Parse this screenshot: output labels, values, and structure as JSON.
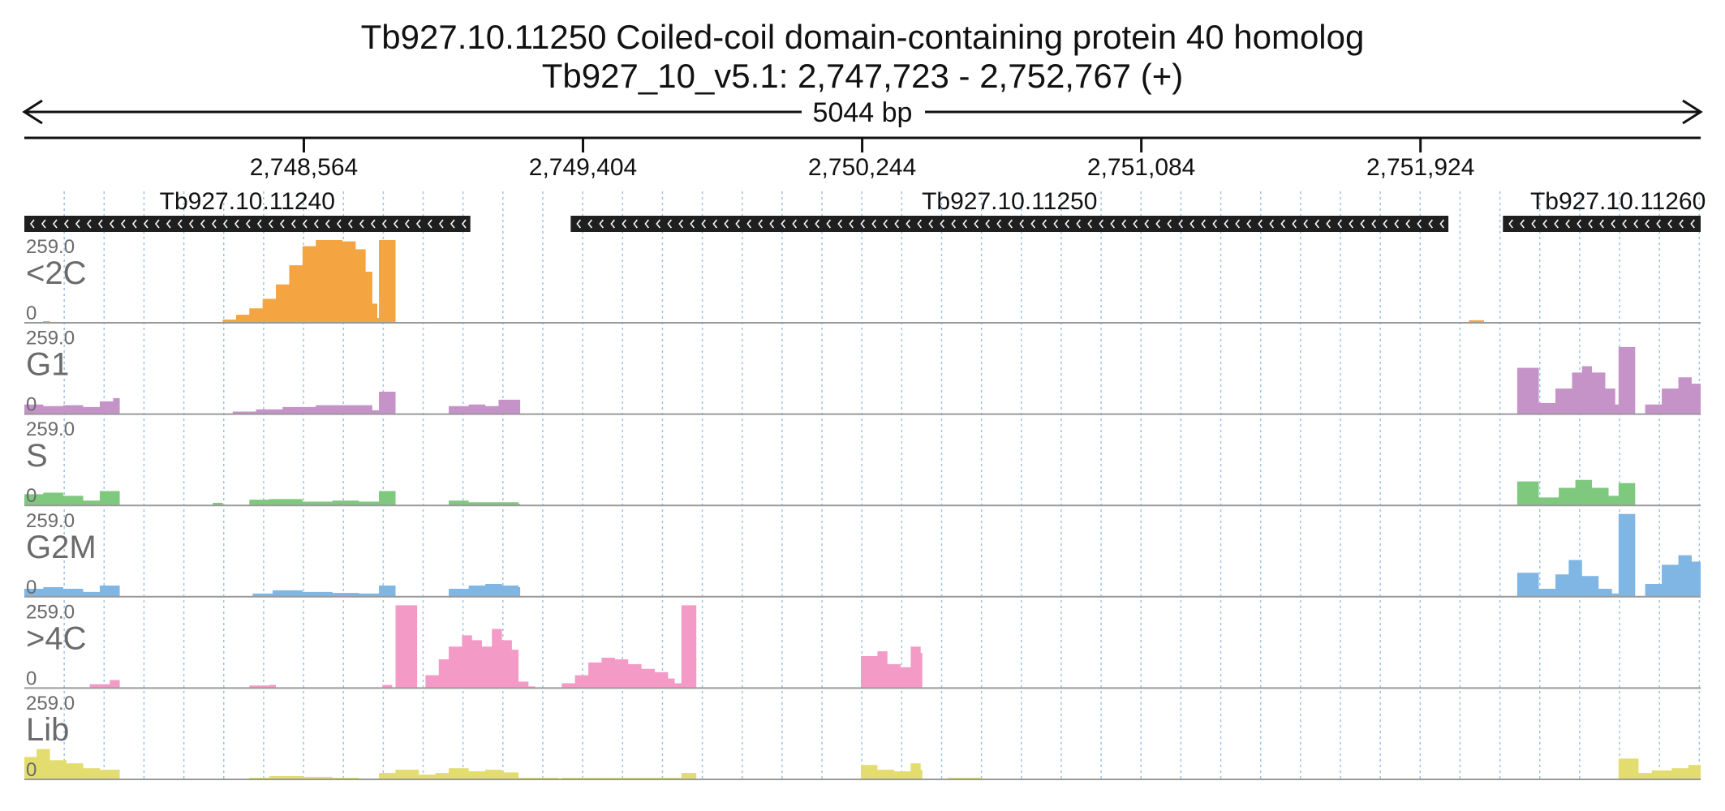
{
  "chart_data": {
    "type": "area",
    "title": "Tb927.10.11250  Coiled-coil domain-containing protein 40 homolog",
    "subtitle": "Tb927_10_v5.1: 2,747,723 - 2,752,767 (+)",
    "span_label": "5044 bp",
    "x_range": [
      2747723,
      2752767
    ],
    "ticks": [
      {
        "value": 2748564,
        "label": "2,748,564"
      },
      {
        "value": 2749404,
        "label": "2,749,404"
      },
      {
        "value": 2750244,
        "label": "2,750,244"
      },
      {
        "value": 2751084,
        "label": "2,751,084"
      },
      {
        "value": 2751924,
        "label": "2,751,924"
      }
    ],
    "genes": [
      {
        "name": "Tb927.10.11240",
        "start": 2747723,
        "end": 2749065,
        "strand": "-"
      },
      {
        "name": "Tb927.10.11250",
        "start": 2749367,
        "end": 2752008,
        "strand": "-"
      },
      {
        "name": "Tb927.10.11260",
        "start": 2752172,
        "end": 2752767,
        "strand": "-"
      }
    ],
    "ylim": [
      0,
      259.0
    ],
    "series": [
      {
        "name": "<2C",
        "max_label": "259.0",
        "min_label": "0",
        "color": "#f5a442",
        "bins": [
          {
            "x": 2747723,
            "y": 0
          },
          {
            "x": 2747780,
            "y": 5
          },
          {
            "x": 2747800,
            "y": 0
          },
          {
            "x": 2748300,
            "y": 0
          },
          {
            "x": 2748320,
            "y": 10
          },
          {
            "x": 2748360,
            "y": 25
          },
          {
            "x": 2748400,
            "y": 45
          },
          {
            "x": 2748440,
            "y": 75
          },
          {
            "x": 2748480,
            "y": 120
          },
          {
            "x": 2748520,
            "y": 180
          },
          {
            "x": 2748560,
            "y": 240
          },
          {
            "x": 2748600,
            "y": 259
          },
          {
            "x": 2748640,
            "y": 259
          },
          {
            "x": 2748680,
            "y": 255
          },
          {
            "x": 2748720,
            "y": 230
          },
          {
            "x": 2748750,
            "y": 160
          },
          {
            "x": 2748770,
            "y": 60
          },
          {
            "x": 2748785,
            "y": 15
          },
          {
            "x": 2748790,
            "y": 259
          },
          {
            "x": 2748835,
            "y": 259
          },
          {
            "x": 2748840,
            "y": 0
          },
          {
            "x": 2752050,
            "y": 0
          },
          {
            "x": 2752070,
            "y": 8
          },
          {
            "x": 2752110,
            "y": 8
          },
          {
            "x": 2752115,
            "y": 0
          },
          {
            "x": 2752767,
            "y": 0
          }
        ]
      },
      {
        "name": "G1",
        "max_label": "259.0",
        "min_label": "0",
        "color": "#c593c7",
        "bins": [
          {
            "x": 2747723,
            "y": 30
          },
          {
            "x": 2747780,
            "y": 25
          },
          {
            "x": 2747840,
            "y": 28
          },
          {
            "x": 2747900,
            "y": 22
          },
          {
            "x": 2747950,
            "y": 40
          },
          {
            "x": 2747990,
            "y": 50
          },
          {
            "x": 2748010,
            "y": 0
          },
          {
            "x": 2748330,
            "y": 0
          },
          {
            "x": 2748350,
            "y": 8
          },
          {
            "x": 2748420,
            "y": 15
          },
          {
            "x": 2748500,
            "y": 22
          },
          {
            "x": 2748600,
            "y": 28
          },
          {
            "x": 2748700,
            "y": 28
          },
          {
            "x": 2748770,
            "y": 12
          },
          {
            "x": 2748790,
            "y": 70
          },
          {
            "x": 2748835,
            "y": 70
          },
          {
            "x": 2748840,
            "y": 0
          },
          {
            "x": 2748990,
            "y": 0
          },
          {
            "x": 2749000,
            "y": 25
          },
          {
            "x": 2749060,
            "y": 30
          },
          {
            "x": 2749110,
            "y": 25
          },
          {
            "x": 2749150,
            "y": 45
          },
          {
            "x": 2749210,
            "y": 45
          },
          {
            "x": 2749215,
            "y": 0
          },
          {
            "x": 2752210,
            "y": 0
          },
          {
            "x": 2752215,
            "y": 145
          },
          {
            "x": 2752270,
            "y": 145
          },
          {
            "x": 2752280,
            "y": 35
          },
          {
            "x": 2752330,
            "y": 80
          },
          {
            "x": 2752380,
            "y": 130
          },
          {
            "x": 2752410,
            "y": 150
          },
          {
            "x": 2752440,
            "y": 130
          },
          {
            "x": 2752480,
            "y": 80
          },
          {
            "x": 2752510,
            "y": 30
          },
          {
            "x": 2752520,
            "y": 210
          },
          {
            "x": 2752565,
            "y": 210
          },
          {
            "x": 2752570,
            "y": 0
          },
          {
            "x": 2752600,
            "y": 30
          },
          {
            "x": 2752650,
            "y": 80
          },
          {
            "x": 2752700,
            "y": 115
          },
          {
            "x": 2752740,
            "y": 95
          },
          {
            "x": 2752767,
            "y": 40
          }
        ]
      },
      {
        "name": "S",
        "max_label": "259.0",
        "min_label": "0",
        "color": "#7fc97f",
        "bins": [
          {
            "x": 2747723,
            "y": 35
          },
          {
            "x": 2747780,
            "y": 40
          },
          {
            "x": 2747840,
            "y": 30
          },
          {
            "x": 2747900,
            "y": 15
          },
          {
            "x": 2747950,
            "y": 45
          },
          {
            "x": 2747990,
            "y": 45
          },
          {
            "x": 2748010,
            "y": 0
          },
          {
            "x": 2748280,
            "y": 0
          },
          {
            "x": 2748290,
            "y": 8
          },
          {
            "x": 2748320,
            "y": 0
          },
          {
            "x": 2748390,
            "y": 0
          },
          {
            "x": 2748400,
            "y": 18
          },
          {
            "x": 2748460,
            "y": 20
          },
          {
            "x": 2748560,
            "y": 12
          },
          {
            "x": 2748650,
            "y": 15
          },
          {
            "x": 2748730,
            "y": 12
          },
          {
            "x": 2748790,
            "y": 45
          },
          {
            "x": 2748835,
            "y": 45
          },
          {
            "x": 2748840,
            "y": 0
          },
          {
            "x": 2748990,
            "y": 0
          },
          {
            "x": 2749000,
            "y": 15
          },
          {
            "x": 2749060,
            "y": 10
          },
          {
            "x": 2749210,
            "y": 5
          },
          {
            "x": 2749215,
            "y": 0
          },
          {
            "x": 2752210,
            "y": 0
          },
          {
            "x": 2752215,
            "y": 75
          },
          {
            "x": 2752270,
            "y": 75
          },
          {
            "x": 2752280,
            "y": 25
          },
          {
            "x": 2752340,
            "y": 55
          },
          {
            "x": 2752390,
            "y": 80
          },
          {
            "x": 2752440,
            "y": 55
          },
          {
            "x": 2752490,
            "y": 30
          },
          {
            "x": 2752520,
            "y": 70
          },
          {
            "x": 2752565,
            "y": 70
          },
          {
            "x": 2752570,
            "y": 0
          },
          {
            "x": 2752767,
            "y": 0
          }
        ]
      },
      {
        "name": "G2M",
        "max_label": "259.0",
        "min_label": "0",
        "color": "#7fb6e3",
        "bins": [
          {
            "x": 2747723,
            "y": 25
          },
          {
            "x": 2747780,
            "y": 30
          },
          {
            "x": 2747840,
            "y": 25
          },
          {
            "x": 2747900,
            "y": 15
          },
          {
            "x": 2747950,
            "y": 35
          },
          {
            "x": 2747990,
            "y": 35
          },
          {
            "x": 2748010,
            "y": 0
          },
          {
            "x": 2748400,
            "y": 0
          },
          {
            "x": 2748410,
            "y": 10
          },
          {
            "x": 2748470,
            "y": 20
          },
          {
            "x": 2748560,
            "y": 15
          },
          {
            "x": 2748650,
            "y": 12
          },
          {
            "x": 2748730,
            "y": 10
          },
          {
            "x": 2748790,
            "y": 35
          },
          {
            "x": 2748835,
            "y": 35
          },
          {
            "x": 2748840,
            "y": 0
          },
          {
            "x": 2748990,
            "y": 0
          },
          {
            "x": 2749000,
            "y": 25
          },
          {
            "x": 2749060,
            "y": 35
          },
          {
            "x": 2749110,
            "y": 40
          },
          {
            "x": 2749160,
            "y": 35
          },
          {
            "x": 2749210,
            "y": 30
          },
          {
            "x": 2749215,
            "y": 0
          },
          {
            "x": 2752210,
            "y": 0
          },
          {
            "x": 2752215,
            "y": 75
          },
          {
            "x": 2752270,
            "y": 75
          },
          {
            "x": 2752280,
            "y": 25
          },
          {
            "x": 2752330,
            "y": 70
          },
          {
            "x": 2752370,
            "y": 115
          },
          {
            "x": 2752410,
            "y": 65
          },
          {
            "x": 2752460,
            "y": 25
          },
          {
            "x": 2752500,
            "y": 10
          },
          {
            "x": 2752520,
            "y": 259
          },
          {
            "x": 2752565,
            "y": 259
          },
          {
            "x": 2752570,
            "y": 0
          },
          {
            "x": 2752600,
            "y": 40
          },
          {
            "x": 2752650,
            "y": 100
          },
          {
            "x": 2752700,
            "y": 130
          },
          {
            "x": 2752740,
            "y": 110
          },
          {
            "x": 2752767,
            "y": 40
          }
        ]
      },
      {
        "name": ">4C",
        "max_label": "259.0",
        "min_label": "0",
        "color": "#f39ac7",
        "bins": [
          {
            "x": 2747723,
            "y": 0
          },
          {
            "x": 2747900,
            "y": 0
          },
          {
            "x": 2747920,
            "y": 12
          },
          {
            "x": 2747980,
            "y": 25
          },
          {
            "x": 2748010,
            "y": 0
          },
          {
            "x": 2748390,
            "y": 0
          },
          {
            "x": 2748400,
            "y": 8
          },
          {
            "x": 2748460,
            "y": 10
          },
          {
            "x": 2748480,
            "y": 0
          },
          {
            "x": 2748790,
            "y": 0
          },
          {
            "x": 2748800,
            "y": 10
          },
          {
            "x": 2748830,
            "y": 0
          },
          {
            "x": 2748840,
            "y": 259
          },
          {
            "x": 2748900,
            "y": 259
          },
          {
            "x": 2748905,
            "y": 0
          },
          {
            "x": 2748930,
            "y": 40
          },
          {
            "x": 2748970,
            "y": 90
          },
          {
            "x": 2749000,
            "y": 130
          },
          {
            "x": 2749040,
            "y": 165
          },
          {
            "x": 2749070,
            "y": 150
          },
          {
            "x": 2749100,
            "y": 130
          },
          {
            "x": 2749130,
            "y": 185
          },
          {
            "x": 2749160,
            "y": 150
          },
          {
            "x": 2749190,
            "y": 120
          },
          {
            "x": 2749210,
            "y": 20
          },
          {
            "x": 2749240,
            "y": 5
          },
          {
            "x": 2749260,
            "y": 0
          },
          {
            "x": 2749330,
            "y": 0
          },
          {
            "x": 2749340,
            "y": 15
          },
          {
            "x": 2749380,
            "y": 40
          },
          {
            "x": 2749420,
            "y": 80
          },
          {
            "x": 2749460,
            "y": 95
          },
          {
            "x": 2749500,
            "y": 90
          },
          {
            "x": 2749540,
            "y": 75
          },
          {
            "x": 2749580,
            "y": 60
          },
          {
            "x": 2749620,
            "y": 50
          },
          {
            "x": 2749660,
            "y": 30
          },
          {
            "x": 2749680,
            "y": 15
          },
          {
            "x": 2749700,
            "y": 259
          },
          {
            "x": 2749740,
            "y": 259
          },
          {
            "x": 2749745,
            "y": 0
          },
          {
            "x": 2750230,
            "y": 0
          },
          {
            "x": 2750240,
            "y": 100
          },
          {
            "x": 2750290,
            "y": 115
          },
          {
            "x": 2750320,
            "y": 75
          },
          {
            "x": 2750360,
            "y": 65
          },
          {
            "x": 2750390,
            "y": 130
          },
          {
            "x": 2750420,
            "y": 110
          },
          {
            "x": 2750425,
            "y": 0
          },
          {
            "x": 2752767,
            "y": 0
          }
        ]
      },
      {
        "name": "Lib",
        "max_label": "259.0",
        "min_label": "0",
        "color": "#e3dc6e",
        "bins": [
          {
            "x": 2747723,
            "y": 70
          },
          {
            "x": 2747760,
            "y": 95
          },
          {
            "x": 2747800,
            "y": 60
          },
          {
            "x": 2747850,
            "y": 50
          },
          {
            "x": 2747900,
            "y": 35
          },
          {
            "x": 2747950,
            "y": 30
          },
          {
            "x": 2747990,
            "y": 30
          },
          {
            "x": 2748010,
            "y": 0
          },
          {
            "x": 2748390,
            "y": 0
          },
          {
            "x": 2748400,
            "y": 5
          },
          {
            "x": 2748460,
            "y": 10
          },
          {
            "x": 2748560,
            "y": 8
          },
          {
            "x": 2748650,
            "y": 5
          },
          {
            "x": 2748730,
            "y": 3
          },
          {
            "x": 2748790,
            "y": 20
          },
          {
            "x": 2748835,
            "y": 20
          },
          {
            "x": 2748840,
            "y": 30
          },
          {
            "x": 2748900,
            "y": 30
          },
          {
            "x": 2748910,
            "y": 15
          },
          {
            "x": 2748960,
            "y": 20
          },
          {
            "x": 2749000,
            "y": 35
          },
          {
            "x": 2749060,
            "y": 25
          },
          {
            "x": 2749110,
            "y": 30
          },
          {
            "x": 2749160,
            "y": 22
          },
          {
            "x": 2749210,
            "y": 5
          },
          {
            "x": 2749330,
            "y": 0
          },
          {
            "x": 2749340,
            "y": 5
          },
          {
            "x": 2749500,
            "y": 5
          },
          {
            "x": 2749700,
            "y": 20
          },
          {
            "x": 2749740,
            "y": 20
          },
          {
            "x": 2749745,
            "y": 0
          },
          {
            "x": 2750230,
            "y": 0
          },
          {
            "x": 2750240,
            "y": 45
          },
          {
            "x": 2750290,
            "y": 30
          },
          {
            "x": 2750340,
            "y": 25
          },
          {
            "x": 2750390,
            "y": 50
          },
          {
            "x": 2750420,
            "y": 30
          },
          {
            "x": 2750425,
            "y": 0
          },
          {
            "x": 2750500,
            "y": 5
          },
          {
            "x": 2750600,
            "y": 5
          },
          {
            "x": 2750605,
            "y": 0
          },
          {
            "x": 2752510,
            "y": 0
          },
          {
            "x": 2752520,
            "y": 65
          },
          {
            "x": 2752570,
            "y": 65
          },
          {
            "x": 2752580,
            "y": 20
          },
          {
            "x": 2752620,
            "y": 28
          },
          {
            "x": 2752680,
            "y": 35
          },
          {
            "x": 2752730,
            "y": 45
          },
          {
            "x": 2752767,
            "y": 25
          }
        ]
      }
    ]
  }
}
